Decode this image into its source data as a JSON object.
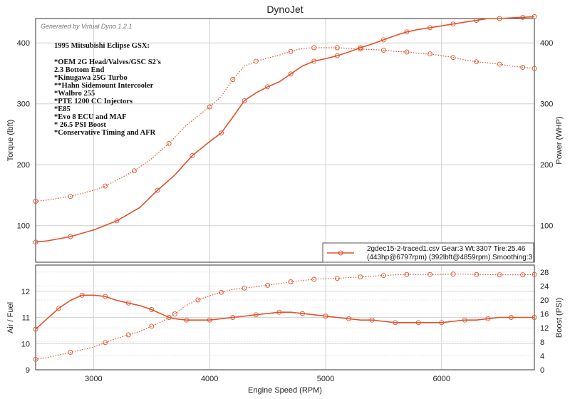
{
  "chart_data": [
    {
      "type": "line",
      "title": "DynoJet",
      "watermark": "Generated by Virtual Dyno 1.2.1",
      "xlabel": "",
      "ylabel": "Torque (lbft)",
      "ylabel_right": "Power (WHP)",
      "xlim": [
        2500,
        6800
      ],
      "ylim": [
        40,
        440
      ],
      "ylim_right": [
        40,
        440
      ],
      "yticks": [
        100,
        200,
        300,
        400
      ],
      "notes_title": "1995 Mitsubishi Eclipse GSX:",
      "notes": [
        "*OEM 2G Head/Valves/GSC S2's",
        "2.3 Bottom End",
        "*Kinugawa 25G Turbo",
        "**Hahn Sidemount Intercooler",
        "*Walbro 255",
        "*PTE 1200 CC Injectors",
        "*E85",
        "*Evo 8 ECU and MAF",
        "* 26.5 PSI Boost",
        "*Conservative Timing and AFR"
      ],
      "legend": {
        "line1": "2gdec15-2-traced1.csv Gear:3 Wt:3307 Tire:25.46",
        "line2": "(443hp@6797rpm) (392lbft@4859rpm) Smoothing:3",
        "position": "bottom-right"
      },
      "color": "#e0522a",
      "series": [
        {
          "name": "Power (WHP)",
          "style": "solid",
          "x": [
            2500,
            2600,
            2800,
            3000,
            3200,
            3400,
            3550,
            3700,
            3850,
            4000,
            4100,
            4200,
            4300,
            4400,
            4500,
            4600,
            4700,
            4800,
            4900,
            5000,
            5100,
            5200,
            5300,
            5400,
            5500,
            5600,
            5700,
            5800,
            5900,
            6000,
            6100,
            6200,
            6300,
            6400,
            6500,
            6600,
            6700,
            6800
          ],
          "values": [
            73,
            75,
            82,
            93,
            108,
            130,
            158,
            183,
            215,
            238,
            252,
            278,
            305,
            318,
            328,
            336,
            349,
            362,
            370,
            374,
            379,
            385,
            392,
            398,
            405,
            412,
            418,
            422,
            425,
            428,
            431,
            434,
            437,
            440,
            440,
            441,
            442,
            443
          ]
        },
        {
          "name": "Torque (lbft)",
          "style": "dotted",
          "x": [
            2500,
            2600,
            2800,
            3000,
            3100,
            3200,
            3350,
            3500,
            3650,
            3800,
            4000,
            4100,
            4200,
            4300,
            4400,
            4600,
            4700,
            4800,
            4900,
            5000,
            5100,
            5200,
            5300,
            5400,
            5500,
            5600,
            5700,
            5800,
            5900,
            6000,
            6100,
            6200,
            6300,
            6400,
            6500,
            6600,
            6700,
            6800
          ],
          "values": [
            140,
            142,
            148,
            158,
            165,
            175,
            190,
            210,
            235,
            265,
            295,
            312,
            340,
            362,
            370,
            380,
            386,
            391,
            392,
            392,
            392,
            391,
            390,
            389,
            388,
            386,
            385,
            383,
            382,
            379,
            376,
            372,
            369,
            367,
            365,
            362,
            360,
            358
          ]
        }
      ]
    },
    {
      "type": "line",
      "xlabel": "Engine Speed (RPM)",
      "ylabel": "Air / Fuel",
      "ylabel_right": "Boost (PSI)",
      "xlim": [
        2500,
        6800
      ],
      "xticks": [
        3000,
        4000,
        5000,
        6000
      ],
      "ylim": [
        9,
        13
      ],
      "yticks": [
        9,
        10,
        11,
        12
      ],
      "ylim_right": [
        0,
        30
      ],
      "yticks_right": [
        0,
        4,
        8,
        12,
        16,
        20,
        24,
        28
      ],
      "color": "#e0522a",
      "series": [
        {
          "name": "Air / Fuel",
          "style": "solid",
          "axis": "left",
          "x": [
            2500,
            2600,
            2700,
            2800,
            2900,
            3000,
            3100,
            3200,
            3300,
            3400,
            3500,
            3600,
            3650,
            3700,
            3800,
            3900,
            4000,
            4100,
            4200,
            4300,
            4400,
            4500,
            4600,
            4700,
            4800,
            4900,
            5000,
            5100,
            5200,
            5300,
            5400,
            5500,
            5600,
            5700,
            5800,
            5900,
            6000,
            6100,
            6200,
            6300,
            6400,
            6500,
            6600,
            6700,
            6800
          ],
          "values": [
            10.55,
            10.95,
            11.35,
            11.65,
            11.85,
            11.85,
            11.8,
            11.65,
            11.55,
            11.45,
            11.3,
            11.1,
            11.0,
            10.95,
            10.9,
            10.9,
            10.9,
            10.95,
            11.0,
            11.05,
            11.1,
            11.15,
            11.2,
            11.2,
            11.15,
            11.1,
            11.05,
            11.0,
            10.95,
            10.9,
            10.9,
            10.85,
            10.8,
            10.8,
            10.8,
            10.8,
            10.8,
            10.85,
            10.9,
            10.9,
            10.95,
            11.0,
            11.0,
            11.0,
            11.0
          ]
        },
        {
          "name": "Boost (PSI)",
          "style": "dotted",
          "axis": "right",
          "x": [
            2500,
            2600,
            2800,
            3000,
            3100,
            3200,
            3300,
            3400,
            3500,
            3600,
            3700,
            3800,
            3900,
            4000,
            4100,
            4200,
            4300,
            4400,
            4500,
            4600,
            4700,
            4800,
            4900,
            5000,
            5100,
            5200,
            5300,
            5400,
            5500,
            5600,
            5700,
            5800,
            5900,
            6000,
            6100,
            6200,
            6300,
            6400,
            6500,
            6600,
            6700,
            6800
          ],
          "values": [
            3,
            3.5,
            5,
            6.5,
            7.8,
            9,
            10,
            11,
            12.5,
            14,
            16,
            18.5,
            20,
            21.2,
            22.2,
            23,
            23.4,
            23.8,
            24.2,
            24.7,
            25.2,
            25.6,
            25.9,
            26.1,
            26.2,
            26.4,
            26.6,
            26.8,
            27.0,
            27.2,
            27.3,
            27.3,
            27.3,
            27.3,
            27.4,
            27.4,
            27.3,
            27.3,
            27.2,
            27.2,
            27.2,
            27.3
          ]
        }
      ]
    }
  ]
}
